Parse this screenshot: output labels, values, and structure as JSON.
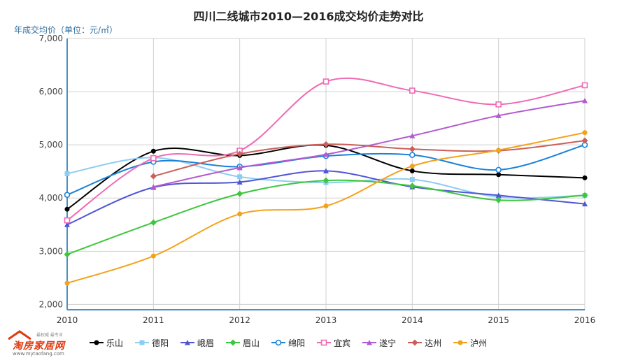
{
  "chart_data": {
    "type": "line",
    "title": "四川二线城市2010—2016成交均价走势对比",
    "ylabel": "年成交均价（单位：元/㎡）",
    "xlabel": "",
    "x": [
      "2010",
      "2011",
      "2012",
      "2013",
      "2014",
      "2015",
      "2016"
    ],
    "ylim": [
      1900,
      7000
    ],
    "yticks": [
      2000,
      3000,
      4000,
      5000,
      6000,
      7000
    ],
    "ytick_labels": [
      "2,000",
      "3,000",
      "4,000",
      "5,000",
      "6,000",
      "7,000"
    ],
    "grid": true,
    "legend": "bottom",
    "series": [
      {
        "name": "乐山",
        "color": "#000000",
        "marker": "circle",
        "values": [
          3790,
          4880,
          4800,
          4990,
          4510,
          4440,
          4380
        ]
      },
      {
        "name": "德阳",
        "color": "#8ecdf2",
        "marker": "square",
        "values": [
          4460,
          4760,
          4400,
          4290,
          4350,
          4020,
          4050
        ]
      },
      {
        "name": "峨眉",
        "color": "#5055d6",
        "marker": "triangle",
        "values": [
          3500,
          4200,
          4300,
          4510,
          4210,
          4050,
          3890
        ]
      },
      {
        "name": "眉山",
        "color": "#3ec63e",
        "marker": "diamond",
        "values": [
          2940,
          3540,
          4080,
          4330,
          4230,
          3960,
          4050
        ]
      },
      {
        "name": "绵阳",
        "color": "#1a82d8",
        "marker": "circle-open",
        "values": [
          4060,
          4680,
          4590,
          4790,
          4810,
          4530,
          5000
        ]
      },
      {
        "name": "宜宾",
        "color": "#f06ab4",
        "marker": "square-open",
        "values": [
          3580,
          4750,
          4890,
          6190,
          6020,
          5760,
          6120
        ]
      },
      {
        "name": "遂宁",
        "color": "#b35ad0",
        "marker": "triangle",
        "values": [
          null,
          4210,
          4570,
          4820,
          5170,
          5550,
          5830
        ]
      },
      {
        "name": "达州",
        "color": "#c9605a",
        "marker": "diamond",
        "values": [
          null,
          4410,
          4830,
          5010,
          4920,
          4890,
          5080
        ]
      },
      {
        "name": "泸州",
        "color": "#f3a21c",
        "marker": "circle",
        "values": [
          2400,
          2910,
          3700,
          3850,
          4600,
          4900,
          5230
        ]
      }
    ]
  },
  "logo": {
    "main": "淘房家居网",
    "sub": "最权威 最专业",
    "url": "www.mytaofang.com"
  }
}
